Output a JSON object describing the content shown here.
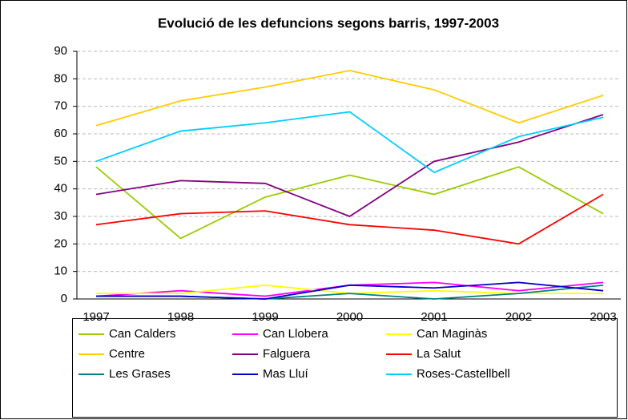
{
  "chart_data": {
    "type": "line",
    "title": "Evolució de les defuncions segons barris, 1997-2003",
    "categories": [
      "1997",
      "1998",
      "1999",
      "2000",
      "2001",
      "2002",
      "2003"
    ],
    "ylim": [
      0,
      90
    ],
    "yticks": [
      0,
      10,
      20,
      30,
      40,
      50,
      60,
      70,
      80,
      90
    ],
    "grid": true,
    "legend": "bottom",
    "series": [
      {
        "name": "Can Calders",
        "color": "#99cc00",
        "values": [
          48,
          22,
          37,
          45,
          38,
          48,
          31
        ]
      },
      {
        "name": "Can Llobera",
        "color": "#ff00ff",
        "values": [
          1,
          3,
          1,
          5,
          6,
          3,
          6
        ]
      },
      {
        "name": "Can Maginàs",
        "color": "#ffff00",
        "values": [
          2,
          2,
          5,
          2,
          3,
          2,
          2
        ]
      },
      {
        "name": "Centre",
        "color": "#ffcc00",
        "values": [
          63,
          72,
          77,
          83,
          76,
          64,
          74
        ]
      },
      {
        "name": "Falguera",
        "color": "#800080",
        "values": [
          38,
          43,
          42,
          30,
          50,
          57,
          67
        ]
      },
      {
        "name": "La Salut",
        "color": "#ff0000",
        "values": [
          27,
          31,
          32,
          27,
          25,
          20,
          38
        ]
      },
      {
        "name": "Les Grases",
        "color": "#008080",
        "values": [
          1,
          1,
          0,
          2,
          0,
          2,
          5
        ]
      },
      {
        "name": "Mas Lluí",
        "color": "#0000cc",
        "values": [
          1,
          1,
          0,
          5,
          4,
          6,
          3
        ]
      },
      {
        "name": "Roses-Castellbell",
        "color": "#00ccff",
        "values": [
          50,
          61,
          64,
          68,
          46,
          59,
          66
        ]
      }
    ]
  }
}
